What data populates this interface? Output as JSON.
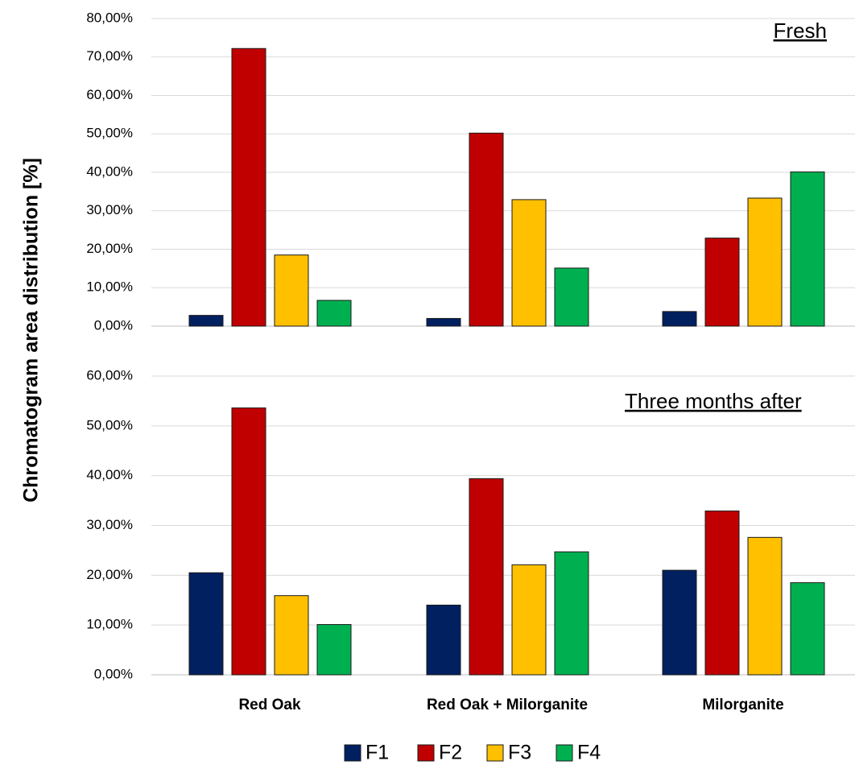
{
  "chart_data": [
    {
      "type": "bar",
      "annotation": "Fresh",
      "ylabel": "Chromatogram area distribution [%]",
      "legend": "bottom",
      "grid": true,
      "categories": [
        null,
        null,
        null
      ],
      "series": [
        {
          "name": "F1",
          "color": "#002060",
          "values": [
            2.8,
            2.0,
            3.8
          ]
        },
        {
          "name": "F2",
          "color": "#c00000",
          "values": [
            72.2,
            50.2,
            22.9
          ]
        },
        {
          "name": "F3",
          "color": "#ffc000",
          "values": [
            18.5,
            32.9,
            33.3
          ]
        },
        {
          "name": "F4",
          "color": "#00b050",
          "values": [
            6.7,
            15.1,
            40.1
          ]
        }
      ],
      "ylim": [
        0,
        80
      ],
      "yticks": [
        {
          "value": 0,
          "label": "0,00%"
        },
        {
          "value": 10,
          "label": "10,00%"
        },
        {
          "value": 20,
          "label": "20,00%"
        },
        {
          "value": 30,
          "label": "30,00%"
        },
        {
          "value": 40,
          "label": "40,00%"
        },
        {
          "value": 50,
          "label": "50,00%"
        },
        {
          "value": 60,
          "label": "60,00%"
        },
        {
          "value": 70,
          "label": "70,00%"
        },
        {
          "value": 80,
          "label": "80,00%"
        }
      ]
    },
    {
      "type": "bar",
      "annotation": "Three months after",
      "grid": true,
      "categories": [
        "Red Oak",
        "Red Oak + Milorganite",
        "Milorganite"
      ],
      "series": [
        {
          "color": "#002060",
          "values": [
            20.5,
            14.0,
            21.0
          ]
        },
        {
          "color": "#c00000",
          "values": [
            53.6,
            39.4,
            32.9
          ]
        },
        {
          "color": "#ffc000",
          "values": [
            15.9,
            22.1,
            27.6
          ]
        },
        {
          "color": "#00b050",
          "values": [
            10.1,
            24.7,
            18.5
          ]
        }
      ],
      "ylim": [
        0,
        60
      ],
      "yticks": [
        {
          "value": 0,
          "label": "0,00%"
        },
        {
          "value": 10,
          "label": "10,00%"
        },
        {
          "value": 20,
          "label": "20,00%"
        },
        {
          "value": 30,
          "label": "30,00%"
        },
        {
          "value": 40,
          "label": "40,00%"
        },
        {
          "value": 50,
          "label": "50,00%"
        },
        {
          "value": 60,
          "label": "60,00%"
        }
      ]
    }
  ]
}
